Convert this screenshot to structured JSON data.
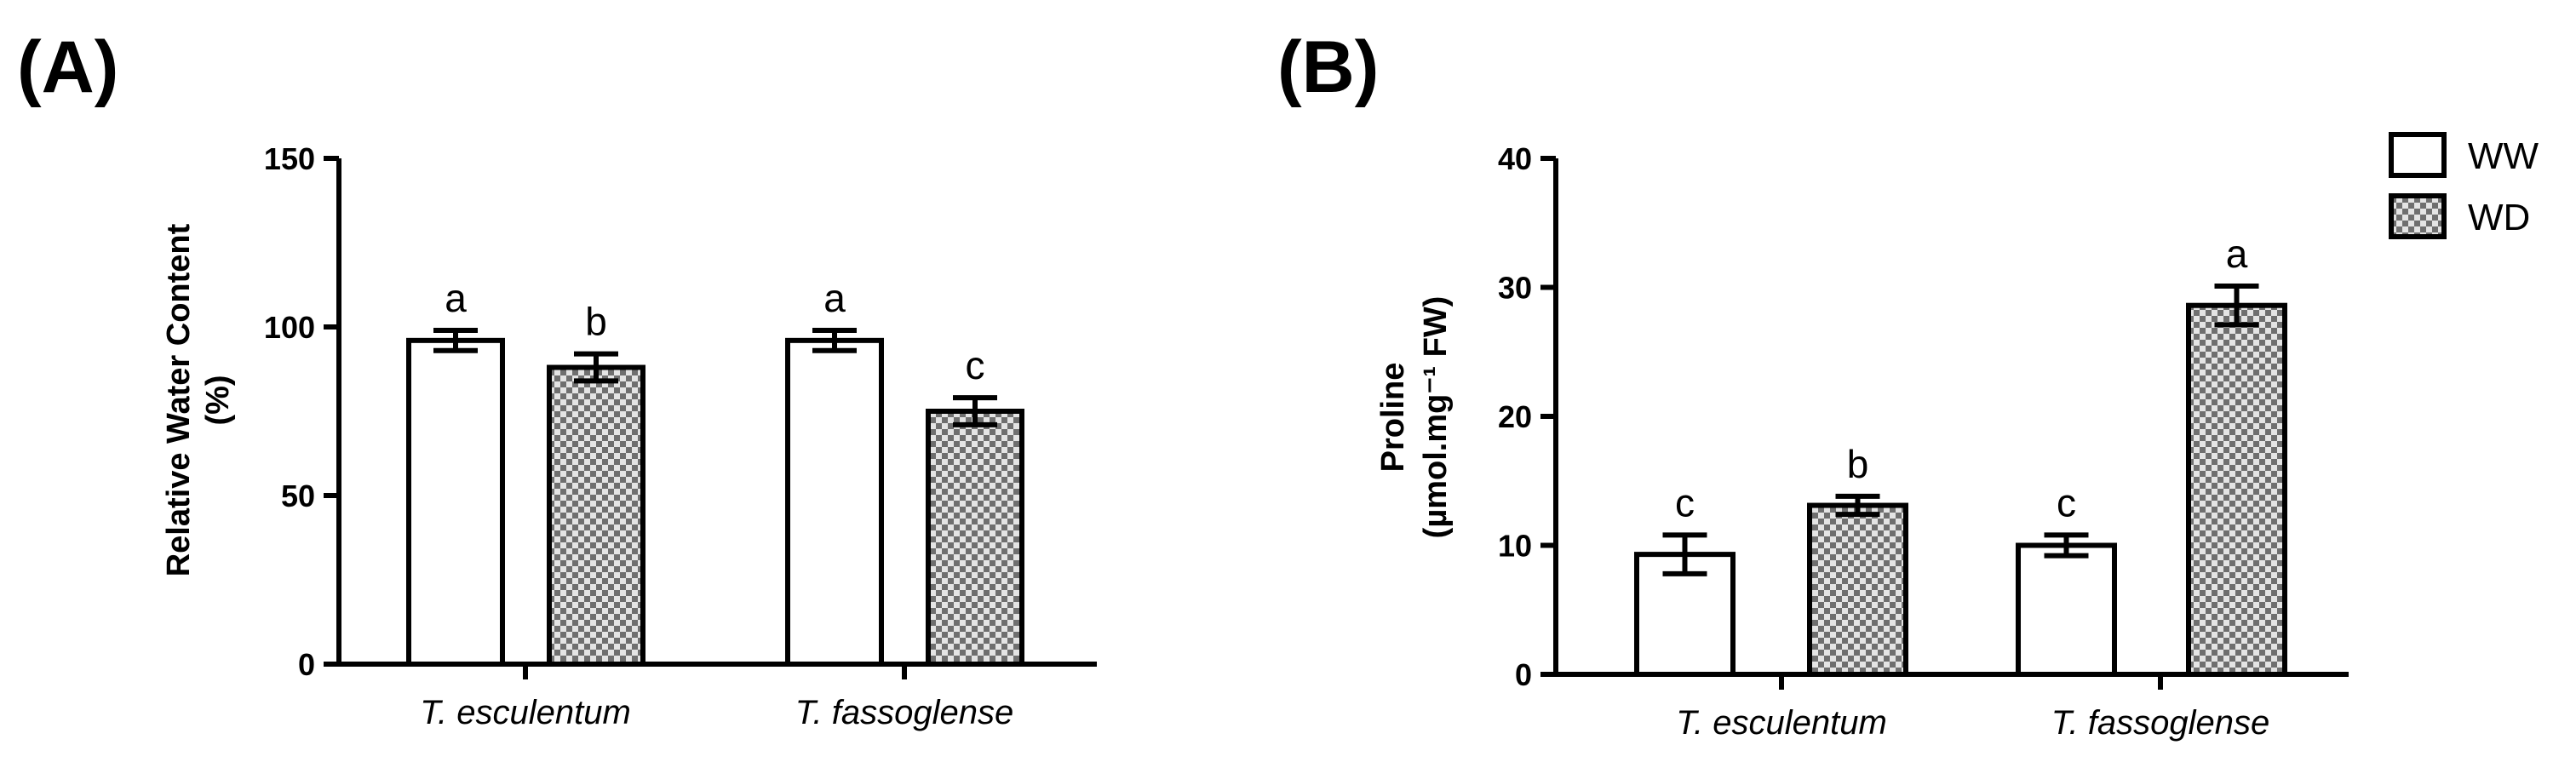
{
  "colors": {
    "axis": "#000000",
    "ww_fill": "#ffffff",
    "wd_check_dark": "#6f6f6f",
    "wd_check_light": "#e4e4e4"
  },
  "legend": {
    "placement": "top-right",
    "items": [
      {
        "label": "WW",
        "pattern": "white"
      },
      {
        "label": "WD",
        "pattern": "checkered"
      }
    ]
  },
  "chart_data": [
    {
      "type": "bar",
      "panel_label": "(A)",
      "categories": [
        "T. esculentum",
        "T. fassoglense"
      ],
      "ylabel_line1": "Relative Water Content",
      "ylabel_line2": "(%)",
      "ylim": [
        0,
        150
      ],
      "yticks": [
        0,
        50,
        100,
        150
      ],
      "grid": false,
      "series": [
        {
          "name": "WW",
          "values": [
            96,
            96
          ],
          "errors": [
            3,
            3
          ],
          "letters": [
            "a",
            "a"
          ]
        },
        {
          "name": "WD",
          "values": [
            88,
            75
          ],
          "errors": [
            4,
            4
          ],
          "letters": [
            "b",
            "c"
          ]
        }
      ]
    },
    {
      "type": "bar",
      "panel_label": "(B)",
      "categories": [
        "T. esculentum",
        "T. fassoglense"
      ],
      "ylabel_line1": "Proline",
      "ylabel_line2": "(µmol.mg⁻¹ FW)",
      "ylim": [
        0,
        40
      ],
      "yticks": [
        0,
        10,
        20,
        30,
        40
      ],
      "grid": false,
      "series": [
        {
          "name": "WW",
          "values": [
            9.3,
            10.0
          ],
          "errors": [
            1.5,
            0.8
          ],
          "letters": [
            "c",
            "c"
          ]
        },
        {
          "name": "WD",
          "values": [
            13.1,
            28.6
          ],
          "errors": [
            0.7,
            1.5
          ],
          "letters": [
            "b",
            "a"
          ]
        }
      ]
    }
  ]
}
